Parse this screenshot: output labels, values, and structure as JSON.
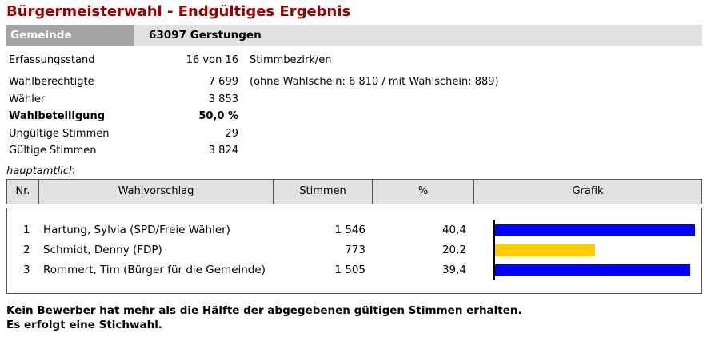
{
  "title": "Bürgermeisterwahl - Endgültiges Ergebnis",
  "gemeinde": {
    "label": "Gemeinde",
    "value": "63097  Gerstungen"
  },
  "stats": [
    {
      "label": "Erfassungsstand",
      "value": "16 von 16",
      "note": "Stimmbezirk/en",
      "bold": false
    },
    {
      "label": "Wahlberechtigte",
      "value": "7 699",
      "note": "(ohne Wahlschein: 6 810 / mit Wahlschein: 889)",
      "bold": false
    },
    {
      "label": "Wähler",
      "value": "3 853",
      "note": "",
      "bold": false
    },
    {
      "label": "Wahlbeteiligung",
      "value": "50,0 %",
      "note": "",
      "bold": true
    },
    {
      "label": "Ungültige Stimmen",
      "value": "29",
      "note": "",
      "bold": false
    },
    {
      "label": "Gültige Stimmen",
      "value": "3 824",
      "note": "",
      "bold": false
    }
  ],
  "section_label": "hauptamtlich",
  "table": {
    "headers": {
      "nr": "Nr.",
      "wahlvorschlag": "Wahlvorschlag",
      "stimmen": "Stimmen",
      "prozent": "%",
      "grafik": "Grafik"
    },
    "rows": [
      {
        "nr": "1",
        "name": "Hartung, Sylvia (SPD/Freie Wähler)",
        "stimmen": "1 546",
        "prozent": "40,4",
        "share": 40.4,
        "color": "#0000ff"
      },
      {
        "nr": "2",
        "name": "Schmidt, Denny (FDP)",
        "stimmen": "773",
        "prozent": "20,2",
        "share": 20.2,
        "color": "#ffcc00"
      },
      {
        "nr": "3",
        "name": "Rommert, Tim (Bürger für die Gemeinde)",
        "stimmen": "1 505",
        "prozent": "39,4",
        "share": 39.4,
        "color": "#0000ff"
      }
    ]
  },
  "footer": {
    "line1": "Kein Bewerber hat mehr als die Hälfte der abgegebenen gültigen Stimmen erhalten.",
    "line2": "Es erfolgt eine Stichwahl."
  }
}
